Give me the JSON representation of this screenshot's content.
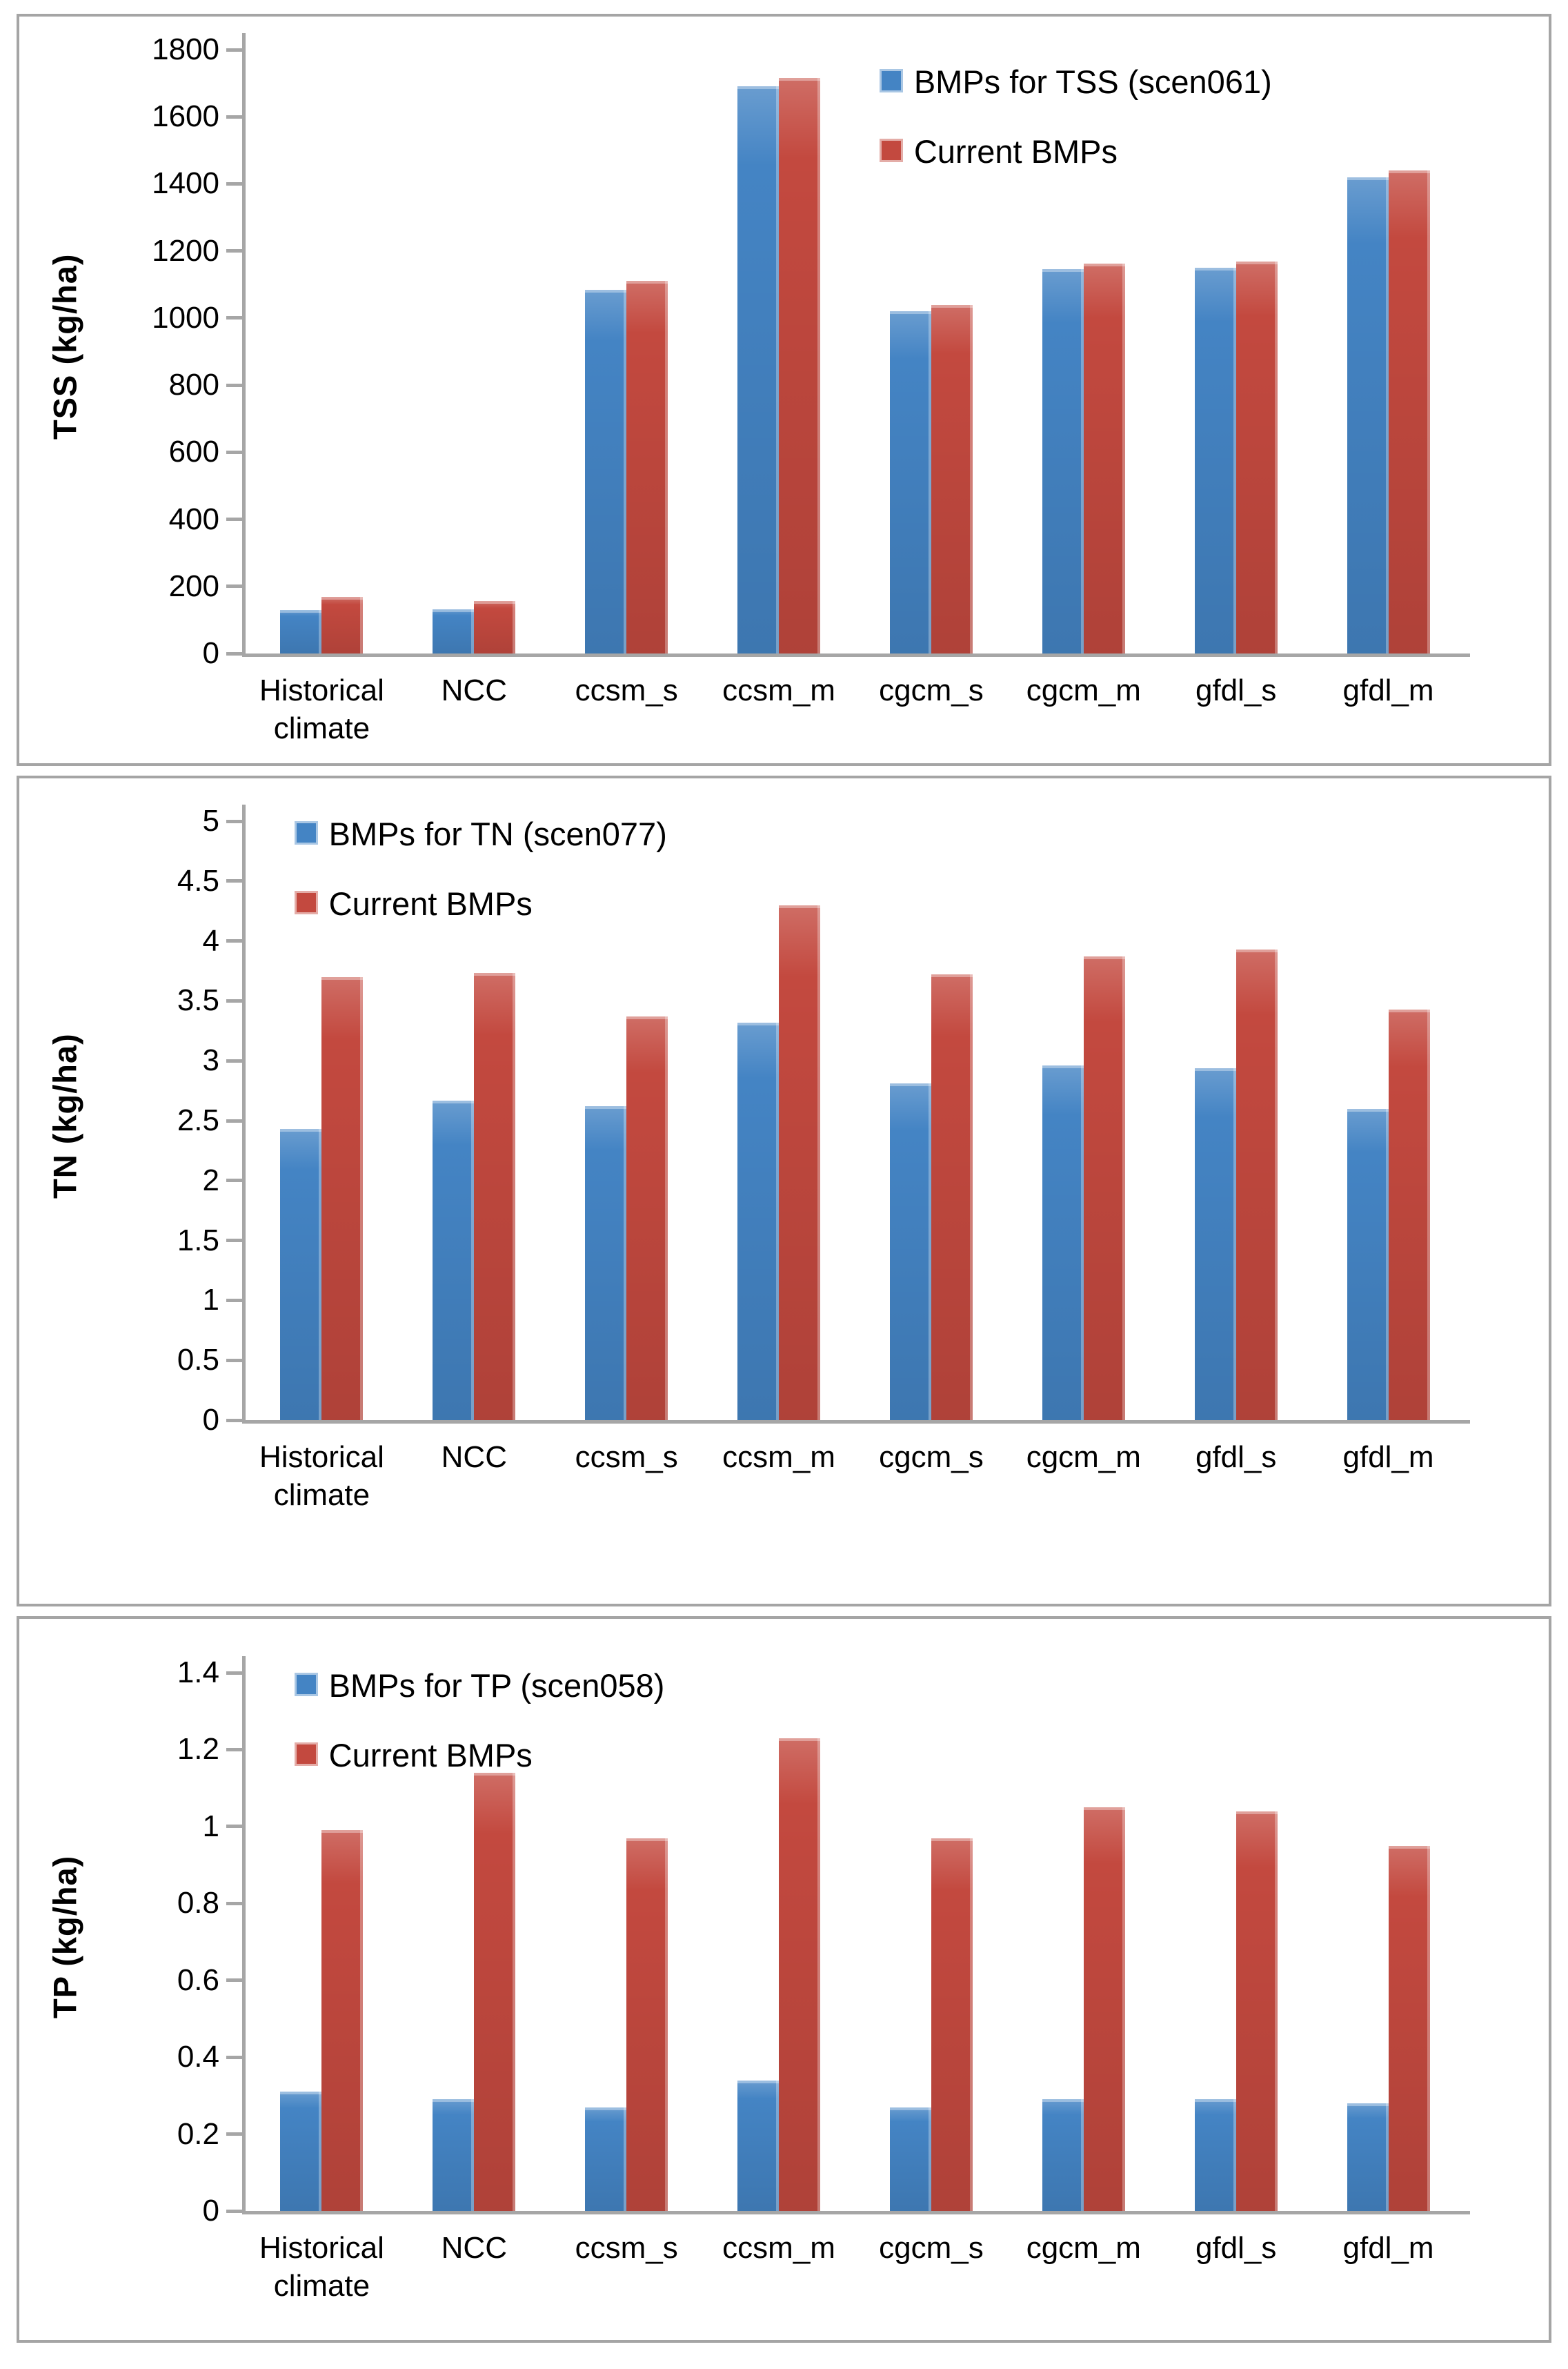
{
  "page": {
    "background": "#ffffff",
    "panel_border_color": "#a5a5a5",
    "axis_color": "#a6a6a6",
    "bar_blue": "#4484c4",
    "bar_red": "#c3493f"
  },
  "chart_data": [
    {
      "type": "bar",
      "ylabel": "TSS (kg/ha)",
      "xlabel": "",
      "ylim": [
        0,
        1800
      ],
      "ystep": 200,
      "grid": false,
      "legend_position": "top-right",
      "tick_labels": [
        "1800",
        "1600",
        "1400",
        "1200",
        "1000",
        "800",
        "600",
        "400",
        "200",
        "0"
      ],
      "categories": [
        "Historical climate",
        "NCC",
        "ccsm_s",
        "ccsm_m",
        "cgcm_s",
        "cgcm_m",
        "gfdl_s",
        "gfdl_m"
      ],
      "series": [
        {
          "name": "BMPs for TSS (scen061)",
          "color": "#4484c4",
          "values": [
            130,
            132,
            1085,
            1690,
            1020,
            1145,
            1150,
            1420
          ]
        },
        {
          "name": "Current BMPs",
          "color": "#c3493f",
          "values": [
            168,
            157,
            1110,
            1715,
            1038,
            1163,
            1168,
            1440
          ]
        }
      ]
    },
    {
      "type": "bar",
      "ylabel": "TN (kg/ha)",
      "xlabel": "",
      "ylim": [
        0,
        5
      ],
      "ystep": 0.5,
      "grid": false,
      "legend_position": "top-left",
      "tick_labels": [
        "5",
        "4.5",
        "4",
        "3.5",
        "3",
        "2.5",
        "2",
        "1.5",
        "1",
        "0.5",
        "0"
      ],
      "categories": [
        "Historical climate",
        "NCC",
        "ccsm_s",
        "ccsm_m",
        "cgcm_s",
        "cgcm_m",
        "gfdl_s",
        "gfdl_m"
      ],
      "series": [
        {
          "name": "BMPs for TN (scen077)",
          "color": "#4484c4",
          "values": [
            2.43,
            2.67,
            2.62,
            3.32,
            2.81,
            2.96,
            2.94,
            2.6
          ]
        },
        {
          "name": "Current BMPs",
          "color": "#c3493f",
          "values": [
            3.7,
            3.73,
            3.37,
            4.3,
            3.72,
            3.87,
            3.93,
            3.43
          ]
        }
      ]
    },
    {
      "type": "bar",
      "ylabel": "TP (kg/ha)",
      "xlabel": "",
      "ylim": [
        0,
        1.4
      ],
      "ystep": 0.2,
      "grid": false,
      "legend_position": "top-left",
      "tick_labels": [
        "1.4",
        "1.2",
        "1",
        "0.8",
        "0.6",
        "0.4",
        "0.2",
        "0"
      ],
      "categories": [
        "Historical climate",
        "NCC",
        "ccsm_s",
        "ccsm_m",
        "cgcm_s",
        "cgcm_m",
        "gfdl_s",
        "gfdl_m"
      ],
      "series": [
        {
          "name": "BMPs for TP (scen058)",
          "color": "#4484c4",
          "values": [
            0.31,
            0.29,
            0.27,
            0.34,
            0.27,
            0.29,
            0.29,
            0.28
          ]
        },
        {
          "name": "Current BMPs",
          "color": "#c3493f",
          "values": [
            0.99,
            1.14,
            0.97,
            1.23,
            0.97,
            1.05,
            1.04,
            0.95
          ]
        }
      ]
    }
  ]
}
